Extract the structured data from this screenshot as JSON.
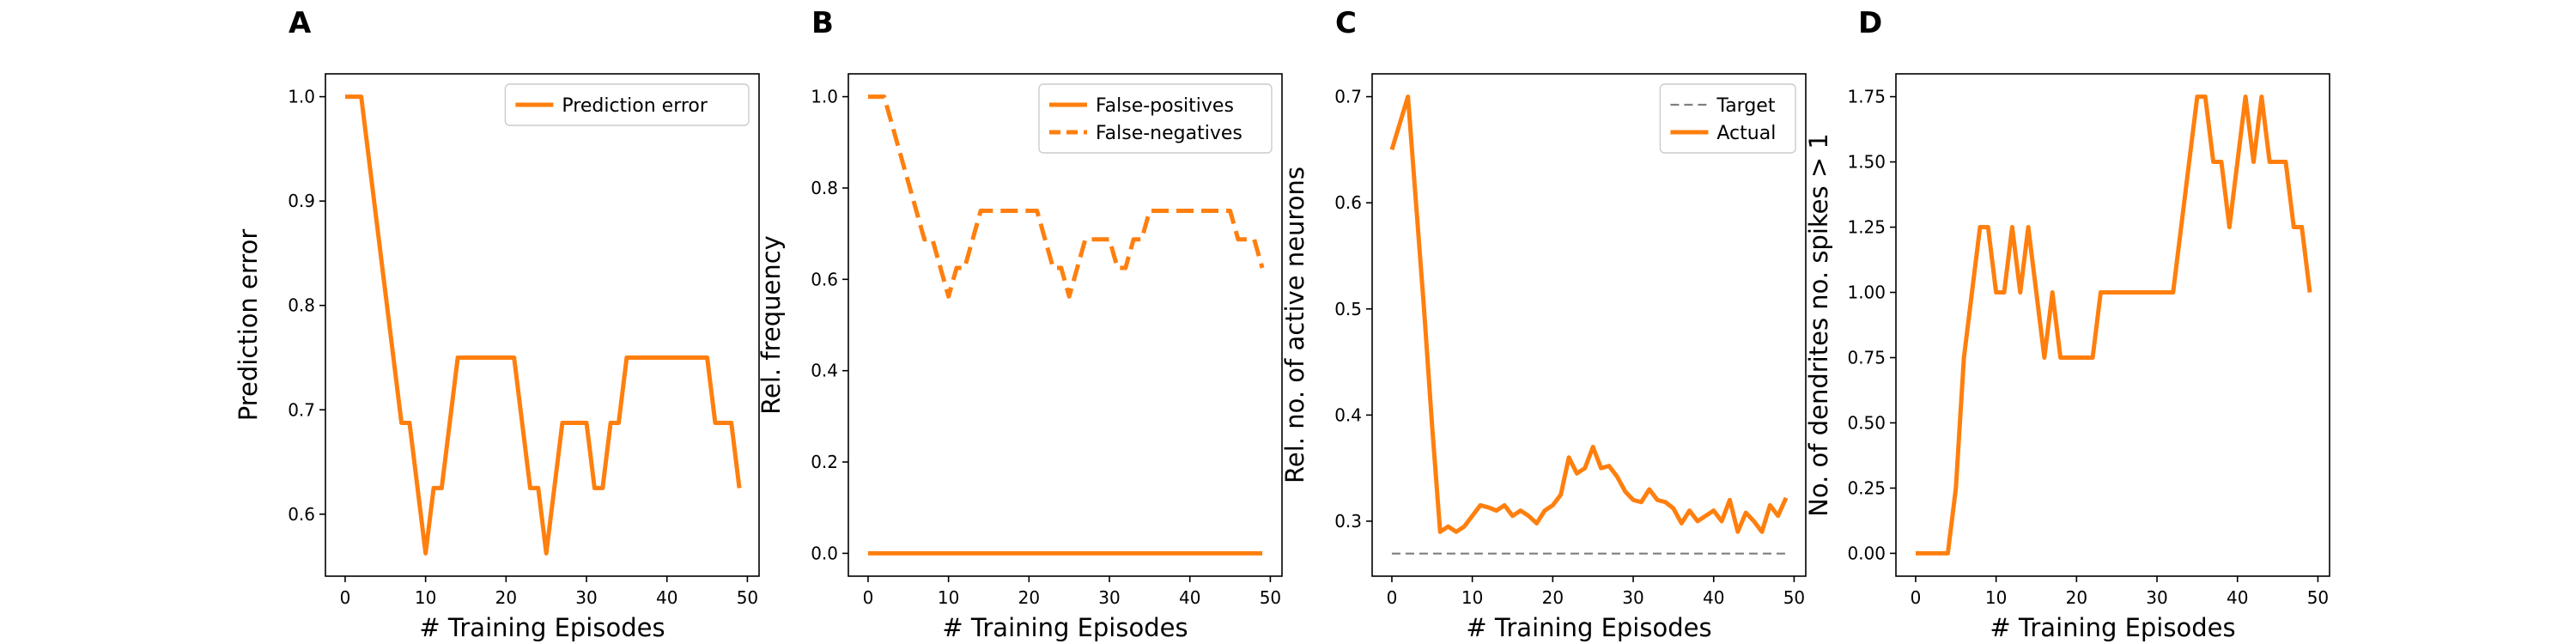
{
  "chart_data": [
    {
      "panel": "A",
      "type": "line",
      "xlabel": "# Training Episodes",
      "ylabel": "Prediction error",
      "xlim": [
        -2.45,
        51.45
      ],
      "ylim": [
        0.5406,
        1.0219
      ],
      "xticks": [
        0,
        10,
        20,
        30,
        40,
        50
      ],
      "yticks": [
        0.6,
        0.7,
        0.8,
        0.9,
        1.0
      ],
      "ytick_labels": [
        "0.6",
        "0.7",
        "0.8",
        "0.9",
        "1.0"
      ],
      "legend_position": "upper right",
      "series": [
        {
          "name": "Prediction error",
          "color": "#ff7f0e",
          "style": "solid",
          "x": [
            0,
            1,
            2,
            3,
            4,
            5,
            6,
            7,
            8,
            9,
            10,
            11,
            12,
            13,
            14,
            15,
            16,
            17,
            18,
            19,
            20,
            21,
            22,
            23,
            24,
            25,
            26,
            27,
            28,
            29,
            30,
            31,
            32,
            33,
            34,
            35,
            36,
            37,
            38,
            39,
            40,
            41,
            42,
            43,
            44,
            45,
            46,
            47,
            48,
            49
          ],
          "y": [
            1.0,
            1.0,
            1.0,
            0.9375,
            0.875,
            0.8125,
            0.75,
            0.6875,
            0.6875,
            0.625,
            0.5625,
            0.625,
            0.625,
            0.6875,
            0.75,
            0.75,
            0.75,
            0.75,
            0.75,
            0.75,
            0.75,
            0.75,
            0.6875,
            0.625,
            0.625,
            0.5625,
            0.625,
            0.6875,
            0.6875,
            0.6875,
            0.6875,
            0.625,
            0.625,
            0.6875,
            0.6875,
            0.75,
            0.75,
            0.75,
            0.75,
            0.75,
            0.75,
            0.75,
            0.75,
            0.75,
            0.75,
            0.75,
            0.6875,
            0.6875,
            0.6875,
            0.625
          ]
        }
      ]
    },
    {
      "panel": "B",
      "type": "line",
      "xlabel": "# Training Episodes",
      "ylabel": "Rel. frequency",
      "xlim": [
        -2.45,
        51.45
      ],
      "ylim": [
        -0.05,
        1.05
      ],
      "xticks": [
        0,
        10,
        20,
        30,
        40,
        50
      ],
      "yticks": [
        0.0,
        0.2,
        0.4,
        0.6,
        0.8,
        1.0
      ],
      "ytick_labels": [
        "0.0",
        "0.2",
        "0.4",
        "0.6",
        "0.8",
        "1.0"
      ],
      "legend_position": "upper right",
      "series": [
        {
          "name": "False-positives",
          "color": "#ff7f0e",
          "style": "solid",
          "x": [
            0,
            1,
            2,
            3,
            4,
            5,
            6,
            7,
            8,
            9,
            10,
            11,
            12,
            13,
            14,
            15,
            16,
            17,
            18,
            19,
            20,
            21,
            22,
            23,
            24,
            25,
            26,
            27,
            28,
            29,
            30,
            31,
            32,
            33,
            34,
            35,
            36,
            37,
            38,
            39,
            40,
            41,
            42,
            43,
            44,
            45,
            46,
            47,
            48,
            49
          ],
          "y": [
            0,
            0,
            0,
            0,
            0,
            0,
            0,
            0,
            0,
            0,
            0,
            0,
            0,
            0,
            0,
            0,
            0,
            0,
            0,
            0,
            0,
            0,
            0,
            0,
            0,
            0,
            0,
            0,
            0,
            0,
            0,
            0,
            0,
            0,
            0,
            0,
            0,
            0,
            0,
            0,
            0,
            0,
            0,
            0,
            0,
            0,
            0,
            0,
            0,
            0
          ]
        },
        {
          "name": "False-negatives",
          "color": "#ff7f0e",
          "style": "dashed",
          "x": [
            0,
            1,
            2,
            3,
            4,
            5,
            6,
            7,
            8,
            9,
            10,
            11,
            12,
            13,
            14,
            15,
            16,
            17,
            18,
            19,
            20,
            21,
            22,
            23,
            24,
            25,
            26,
            27,
            28,
            29,
            30,
            31,
            32,
            33,
            34,
            35,
            36,
            37,
            38,
            39,
            40,
            41,
            42,
            43,
            44,
            45,
            46,
            47,
            48,
            49
          ],
          "y": [
            1.0,
            1.0,
            1.0,
            0.9375,
            0.875,
            0.8125,
            0.75,
            0.6875,
            0.6875,
            0.625,
            0.5625,
            0.625,
            0.625,
            0.6875,
            0.75,
            0.75,
            0.75,
            0.75,
            0.75,
            0.75,
            0.75,
            0.75,
            0.6875,
            0.625,
            0.625,
            0.5625,
            0.625,
            0.6875,
            0.6875,
            0.6875,
            0.6875,
            0.625,
            0.625,
            0.6875,
            0.6875,
            0.75,
            0.75,
            0.75,
            0.75,
            0.75,
            0.75,
            0.75,
            0.75,
            0.75,
            0.75,
            0.75,
            0.6875,
            0.6875,
            0.6875,
            0.625
          ]
        }
      ]
    },
    {
      "panel": "C",
      "type": "line",
      "xlabel": "# Training Episodes",
      "ylabel": "Rel. no. of active neurons",
      "xlim": [
        -2.45,
        51.45
      ],
      "ylim": [
        0.2482,
        0.7215
      ],
      "xticks": [
        0,
        10,
        20,
        30,
        40,
        50
      ],
      "yticks": [
        0.3,
        0.4,
        0.5,
        0.6,
        0.7
      ],
      "ytick_labels": [
        "0.3",
        "0.4",
        "0.5",
        "0.6",
        "0.7"
      ],
      "legend_position": "upper right",
      "series": [
        {
          "name": "Target",
          "color": "#7f7f7f",
          "style": "dashed",
          "x": [
            0,
            49
          ],
          "y": [
            0.2695,
            0.2695
          ]
        },
        {
          "name": "Actual",
          "color": "#ff7f0e",
          "style": "solid",
          "x": [
            0,
            1,
            2,
            3,
            4,
            5,
            6,
            7,
            8,
            9,
            10,
            11,
            12,
            13,
            14,
            15,
            16,
            17,
            18,
            19,
            20,
            21,
            22,
            23,
            24,
            25,
            26,
            27,
            28,
            29,
            30,
            31,
            32,
            33,
            34,
            35,
            36,
            37,
            38,
            39,
            40,
            41,
            42,
            43,
            44,
            45,
            46,
            47,
            48,
            49
          ],
          "y": [
            0.65,
            0.675,
            0.7,
            0.6,
            0.5,
            0.39,
            0.29,
            0.295,
            0.29,
            0.295,
            0.305,
            0.315,
            0.313,
            0.31,
            0.315,
            0.305,
            0.31,
            0.305,
            0.298,
            0.31,
            0.315,
            0.325,
            0.36,
            0.345,
            0.35,
            0.37,
            0.35,
            0.352,
            0.342,
            0.328,
            0.32,
            0.318,
            0.33,
            0.32,
            0.318,
            0.312,
            0.298,
            0.31,
            0.3,
            0.305,
            0.31,
            0.3,
            0.32,
            0.29,
            0.308,
            0.3,
            0.29,
            0.315,
            0.305,
            0.322
          ]
        }
      ]
    },
    {
      "panel": "D",
      "type": "line",
      "xlabel": "# Training Episodes",
      "ylabel": "No. of dendrites no. spikes > 1",
      "xlim": [
        -2.45,
        51.45
      ],
      "ylim": [
        -0.0875,
        1.8375
      ],
      "xticks": [
        0,
        10,
        20,
        30,
        40,
        50
      ],
      "yticks": [
        0.0,
        0.25,
        0.5,
        0.75,
        1.0,
        1.25,
        1.5,
        1.75
      ],
      "ytick_labels": [
        "0.00",
        "0.25",
        "0.50",
        "0.75",
        "1.00",
        "1.25",
        "1.50",
        "1.75"
      ],
      "legend_position": "none",
      "series": [
        {
          "name": "",
          "color": "#ff7f0e",
          "style": "solid",
          "x": [
            0,
            1,
            2,
            3,
            4,
            5,
            6,
            7,
            8,
            9,
            10,
            11,
            12,
            13,
            14,
            15,
            16,
            17,
            18,
            19,
            20,
            21,
            22,
            23,
            24,
            25,
            26,
            27,
            28,
            29,
            30,
            31,
            32,
            33,
            34,
            35,
            36,
            37,
            38,
            39,
            40,
            41,
            42,
            43,
            44,
            45,
            46,
            47,
            48,
            49
          ],
          "y": [
            0,
            0,
            0,
            0,
            0,
            0.25,
            0.75,
            1.0,
            1.25,
            1.25,
            1.0,
            1.0,
            1.25,
            1.0,
            1.25,
            1.0,
            0.75,
            1.0,
            0.75,
            0.75,
            0.75,
            0.75,
            0.75,
            1.0,
            1.0,
            1.0,
            1.0,
            1.0,
            1.0,
            1.0,
            1.0,
            1.0,
            1.0,
            1.25,
            1.5,
            1.75,
            1.75,
            1.5,
            1.5,
            1.25,
            1.5,
            1.75,
            1.5,
            1.75,
            1.5,
            1.5,
            1.5,
            1.25,
            1.25,
            1.0
          ]
        }
      ]
    }
  ]
}
